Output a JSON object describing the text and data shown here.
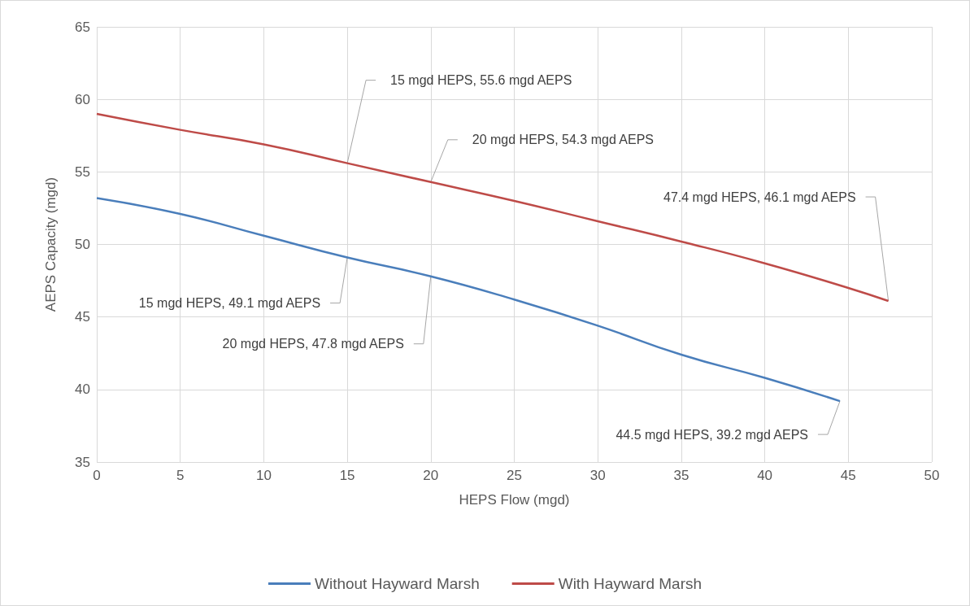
{
  "chart_data": {
    "type": "line",
    "xlabel": "HEPS Flow (mgd)",
    "ylabel": "AEPS Capacity (mgd)",
    "xlim": [
      0,
      50
    ],
    "xticks": [
      0,
      5,
      10,
      15,
      20,
      25,
      30,
      35,
      40,
      45,
      50
    ],
    "ylim": [
      35,
      65
    ],
    "yticks": [
      35,
      40,
      45,
      50,
      55,
      60,
      65
    ],
    "grid": true,
    "legend": "bottom",
    "marker": "none",
    "line_style": "solid",
    "series": [
      {
        "name": "Without Hayward Marsh",
        "color": "#4a7ebb",
        "x": [
          0,
          5,
          10,
          15,
          20,
          25,
          30,
          35,
          40,
          44.5
        ],
        "values": [
          53.2,
          52.1,
          50.6,
          49.1,
          47.8,
          46.2,
          44.4,
          42.4,
          40.8,
          39.2
        ]
      },
      {
        "name": "With Hayward Marsh",
        "color": "#be4b48",
        "x": [
          0,
          5,
          10,
          15,
          20,
          25,
          30,
          35,
          40,
          45,
          47.4
        ],
        "values": [
          59.0,
          57.9,
          56.9,
          55.6,
          54.3,
          53.0,
          51.6,
          50.2,
          48.7,
          47.0,
          46.1
        ]
      }
    ],
    "annotations": [
      {
        "text": "15 mgd HEPS, 55.6 mgd AEPS",
        "x": 15,
        "y": 55.6
      },
      {
        "text": "20 mgd HEPS, 54.3 mgd AEPS",
        "x": 20,
        "y": 54.3
      },
      {
        "text": "47.4 mgd HEPS, 46.1 mgd AEPS",
        "x": 47.4,
        "y": 46.1
      },
      {
        "text": "15 mgd HEPS, 49.1 mgd AEPS",
        "x": 15,
        "y": 49.1
      },
      {
        "text": "20 mgd HEPS, 47.8 mgd AEPS",
        "x": 20,
        "y": 47.8
      },
      {
        "text": "44.5 mgd HEPS, 39.2 mgd AEPS",
        "x": 44.5,
        "y": 39.2
      }
    ]
  }
}
